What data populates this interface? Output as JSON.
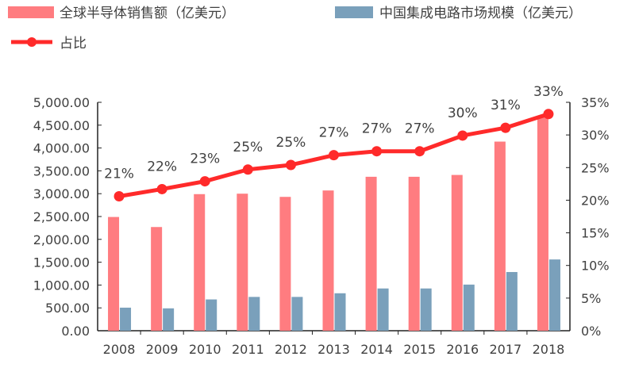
{
  "chart_data": {
    "type": "bar+line",
    "categories": [
      "2008",
      "2009",
      "2010",
      "2011",
      "2012",
      "2013",
      "2014",
      "2015",
      "2016",
      "2017",
      "2018"
    ],
    "series": [
      {
        "name": "全球半导体销售额（亿美元）",
        "type": "bar",
        "axis": "left",
        "color": "#ff7c80",
        "values": [
          2490,
          2270,
          2990,
          3000,
          2930,
          3070,
          3370,
          3370,
          3410,
          4140,
          4690
        ]
      },
      {
        "name": "中国集成电路市场规模（亿美元）",
        "type": "bar",
        "axis": "left",
        "color": "#7aa0bb",
        "values": [
          505,
          490,
          685,
          740,
          740,
          820,
          925,
          925,
          1010,
          1285,
          1560
        ]
      },
      {
        "name": "占比",
        "type": "line",
        "axis": "right",
        "color": "#ff2a2a",
        "values": [
          20.6,
          21.7,
          22.9,
          24.7,
          25.4,
          26.9,
          27.5,
          27.5,
          29.9,
          31.1,
          33.2
        ],
        "labels": [
          "21%",
          "22%",
          "23%",
          "25%",
          "25%",
          "27%",
          "27%",
          "27%",
          "30%",
          "31%",
          "33%"
        ]
      }
    ],
    "y_left": {
      "range": [
        0,
        5000
      ],
      "ticks": [
        "0.00",
        "500.00",
        "1,000.00",
        "1,500.00",
        "2,000.00",
        "2,500.00",
        "3,000.00",
        "3,500.00",
        "4,000.00",
        "4,500.00",
        "5,000.00"
      ]
    },
    "y_right": {
      "range": [
        0,
        35
      ],
      "ticks": [
        "0%",
        "5%",
        "10%",
        "15%",
        "20%",
        "25%",
        "30%",
        "35%"
      ]
    },
    "grid": false,
    "legend_position": "top-left"
  }
}
